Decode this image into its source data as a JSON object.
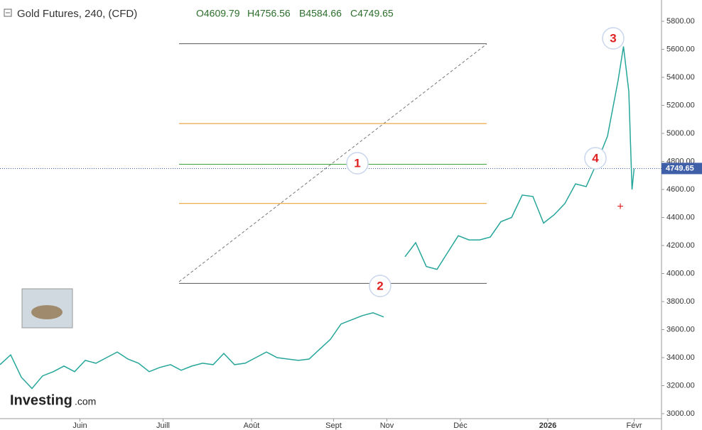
{
  "chart_data": {
    "type": "line",
    "title": "Gold Futures, 240, (CFD)",
    "ohlc_labels": [
      "O4609.79",
      "H4756.56",
      "B4584.66",
      "C4749.65"
    ],
    "x": [
      0,
      1,
      2,
      3,
      4,
      5,
      6,
      7,
      8,
      9,
      10,
      11,
      12,
      13,
      14,
      15,
      16,
      17,
      18,
      19,
      20,
      21,
      22,
      23,
      24,
      25,
      26,
      27,
      28,
      29,
      30,
      31,
      32,
      33,
      34,
      35,
      36,
      37,
      38,
      39,
      40,
      41,
      42,
      43,
      44,
      45,
      46,
      47,
      48,
      49,
      50,
      51,
      52,
      53,
      54,
      55,
      56,
      57,
      58,
      58.5,
      59,
      59.3,
      59.5
    ],
    "series": [
      {
        "name": "Gold Futures",
        "color": "#26a69a",
        "values": [
          3350,
          3420,
          3260,
          3180,
          3270,
          3300,
          3340,
          3300,
          3380,
          3360,
          3400,
          3440,
          3390,
          3360,
          3300,
          3330,
          3350,
          3310,
          3340,
          3360,
          3350,
          3430,
          3350,
          3360,
          3400,
          3440,
          3400,
          3390,
          3380,
          3390,
          3460,
          3530,
          3640,
          3670,
          3700,
          3720,
          3690,
          null,
          4120,
          4220,
          4050,
          4030,
          4150,
          4270,
          4240,
          4240,
          4260,
          4370,
          4400,
          4560,
          4550,
          4360,
          4420,
          4500,
          4640,
          4620,
          4790,
          4980,
          5380,
          5620,
          5300,
          4600,
          4750
        ]
      }
    ],
    "xlim": [
      0,
      62
    ],
    "xticks": [
      {
        "value": 7.5,
        "label": "Juin"
      },
      {
        "value": 15.3,
        "label": "Juill"
      },
      {
        "value": 23.6,
        "label": "Août"
      },
      {
        "value": 31.3,
        "label": "Sept"
      },
      {
        "value": 36.3,
        "label": "Nov"
      },
      {
        "value": 43.2,
        "label": "Déc"
      },
      {
        "value": 51.4,
        "label": "2026"
      },
      {
        "value": 59.5,
        "label": "Févr"
      }
    ],
    "ylim": [
      3000,
      5800
    ],
    "yticks": [
      {
        "value": 3000,
        "label": "3000.00"
      },
      {
        "value": 3200,
        "label": "3200.00"
      },
      {
        "value": 3400,
        "label": "3400.00"
      },
      {
        "value": 3600,
        "label": "3600.00"
      },
      {
        "value": 3800,
        "label": "3800.00"
      },
      {
        "value": 4000,
        "label": "4000.00"
      },
      {
        "value": 4200,
        "label": "4200.00"
      },
      {
        "value": 4400,
        "label": "4400.00"
      },
      {
        "value": 4600,
        "label": "4600.00"
      },
      {
        "value": 4800,
        "label": "4800.00"
      },
      {
        "value": 5000,
        "label": "5000.00"
      },
      {
        "value": 5200,
        "label": "5200.00"
      },
      {
        "value": 5400,
        "label": "5400.00"
      },
      {
        "value": 5600,
        "label": "5600.00"
      },
      {
        "value": 5800,
        "label": "5800.00"
      }
    ],
    "last_price": 4749.65,
    "levels": [
      5640,
      5070,
      4780,
      4500,
      3930
    ],
    "level_colors": [
      "#555555",
      "#e69520",
      "#3aa03a",
      "#e69520",
      "#555555"
    ],
    "annotations": [
      "1",
      "2",
      "3",
      "4"
    ],
    "watermark": "Investing",
    "watermark_suffix": ".com"
  }
}
